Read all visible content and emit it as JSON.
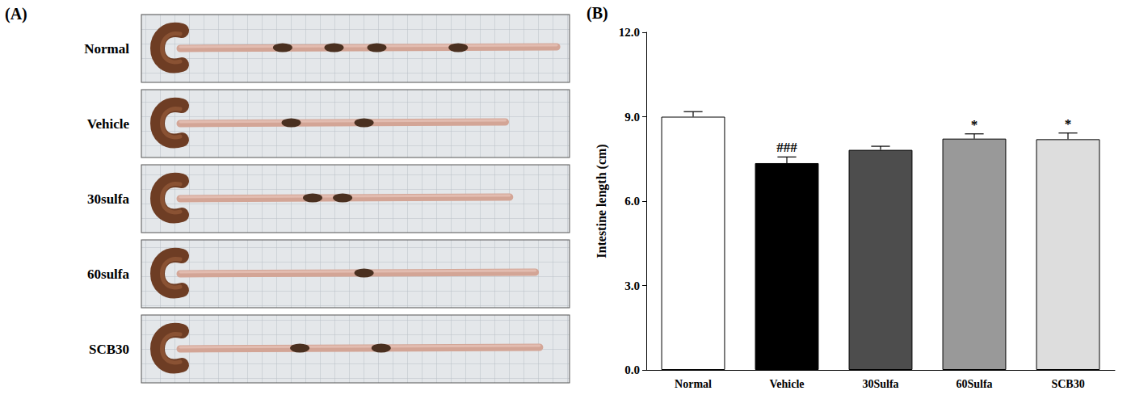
{
  "chart_data": {
    "type": "bar",
    "panel_label": "(B)",
    "y_label": "Intestine length (cm)",
    "categories": [
      "Normal",
      "Vehicle",
      "30Sulfa",
      "60Sulfa",
      "SCB30"
    ],
    "values": [
      9.0,
      7.35,
      7.82,
      8.22,
      8.2
    ],
    "errors": [
      0.18,
      0.22,
      0.13,
      0.17,
      0.22
    ],
    "colors": [
      "#ffffff",
      "#000000",
      "#4d4d4d",
      "#999999",
      "#dddddd"
    ],
    "ylim": [
      0,
      12
    ],
    "yticks": [
      {
        "value": 0,
        "label": "0.0"
      },
      {
        "value": 3,
        "label": "3.0"
      },
      {
        "value": 6,
        "label": "6.0"
      },
      {
        "value": 9,
        "label": "9.0"
      },
      {
        "value": 12,
        "label": "12.0"
      }
    ],
    "grid": false,
    "annotations": [
      {
        "category": "Vehicle",
        "text": "###"
      },
      {
        "category": "60Sulfa",
        "text": "*"
      },
      {
        "category": "SCB30",
        "text": "*"
      }
    ]
  },
  "panel_a": {
    "panel_label": "(A)",
    "rows": [
      "Normal",
      "Vehicle",
      "30sulfa",
      "60sulfa",
      "SCB30"
    ]
  }
}
